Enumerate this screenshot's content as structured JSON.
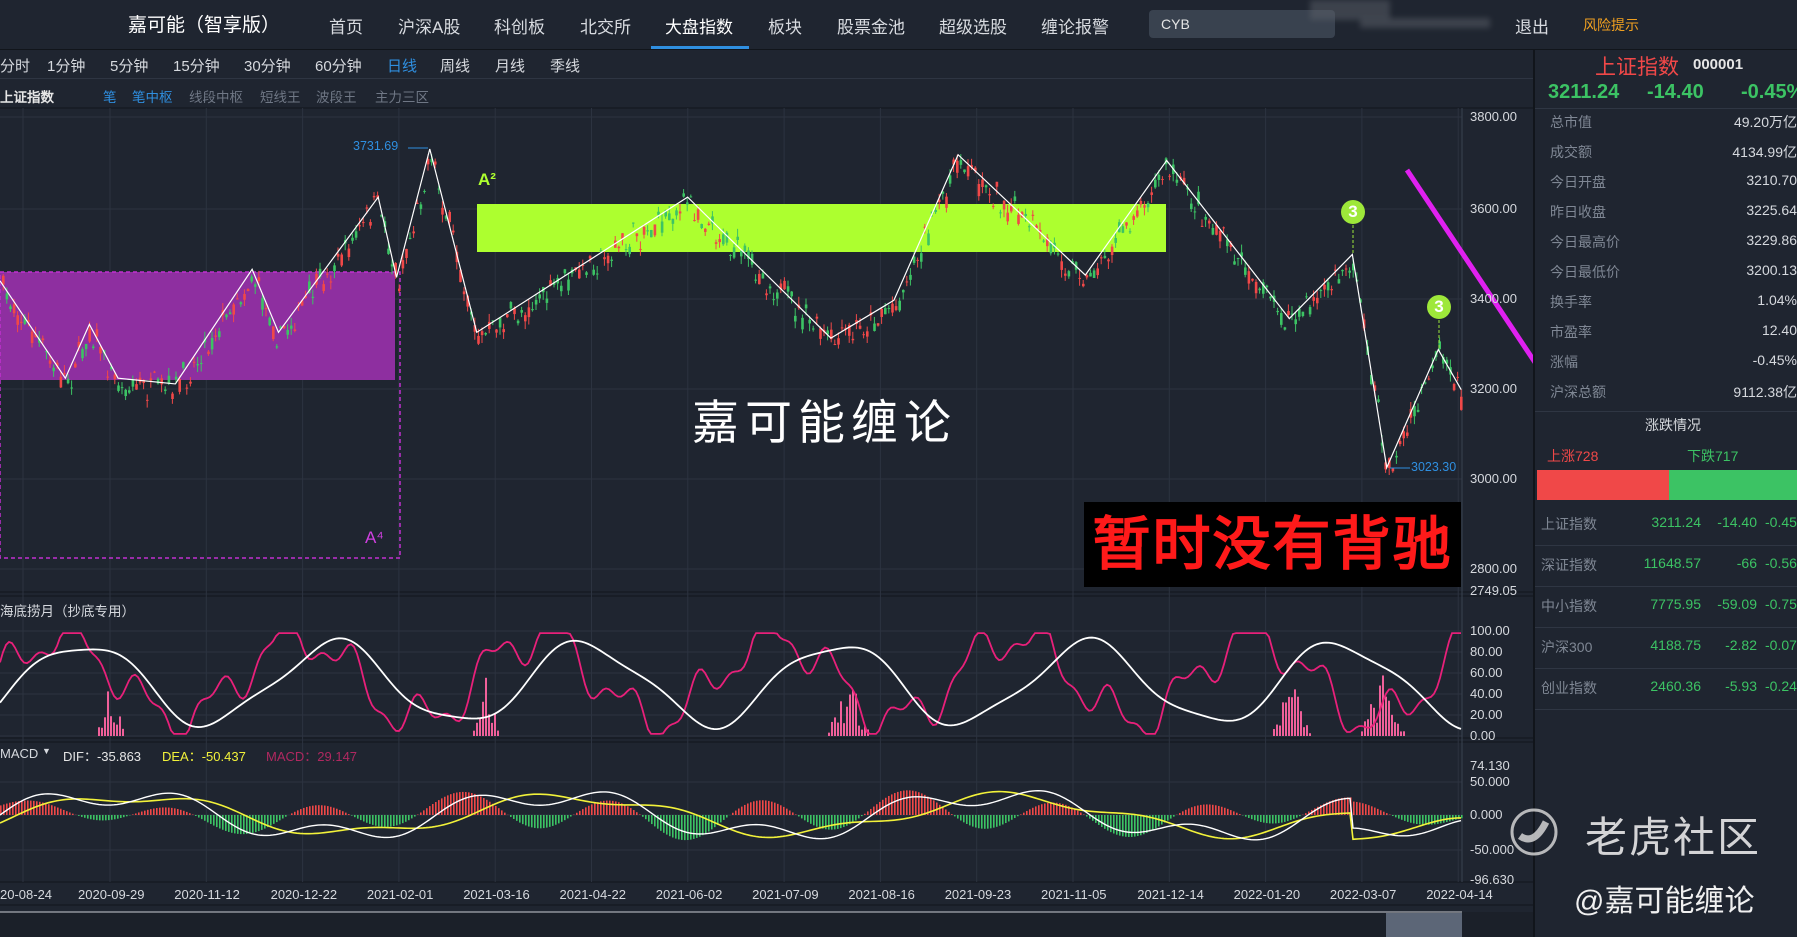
{
  "app": {
    "title": "嘉可能（智享版）"
  },
  "nav": {
    "items": [
      "首页",
      "沪深A股",
      "科创板",
      "北交所",
      "大盘指数",
      "板块",
      "股票金池",
      "超级选股",
      "缠论报警"
    ],
    "active": "大盘指数",
    "search_value": "CYB",
    "logout": "退出",
    "risk": "风险提示"
  },
  "periods": {
    "items": [
      "分时",
      "1分钟",
      "5分钟",
      "15分钟",
      "30分钟",
      "60分钟",
      "日线",
      "周线",
      "月线",
      "季线"
    ],
    "active": "日线"
  },
  "indicators": {
    "symbol": "上证指数",
    "items": [
      "笔",
      "笔中枢",
      "线段中枢",
      "短线王",
      "波段王",
      "主力三区"
    ],
    "active": [
      "笔",
      "笔中枢"
    ]
  },
  "main_chart": {
    "price_axis": [
      "3800.00",
      "3600.00",
      "3400.00",
      "3200.00",
      "3000.00",
      "2800.00",
      "2749.05"
    ],
    "high_label": "3731.69",
    "low_label": "3023.30",
    "zone_labels": {
      "a2": "A²",
      "a4": "A⁴"
    },
    "signal_badge": "3",
    "watermark": "嘉可能缠论",
    "note": "暂时没有背驰",
    "colors": {
      "up": "#f04848",
      "down": "#3cc364",
      "zone_a4": "#8e2fa0",
      "zone_a2": "#adff2f",
      "arrow": "#e020f0"
    }
  },
  "osc_panel": {
    "title": "海底捞月（抄底专用）",
    "axis": [
      "100.00",
      "80.00",
      "60.00",
      "40.00",
      "20.00",
      "0.00"
    ]
  },
  "macd_panel": {
    "selector": "MACD",
    "dif": "DIF：-35.863",
    "dea": "DEA：-50.437",
    "macd": "MACD：29.147",
    "axis": [
      "74.130",
      "50.000",
      "0.000",
      "-50.000",
      "-96.630"
    ]
  },
  "date_axis": [
    "20-08-24",
    "2020-09-29",
    "2020-11-12",
    "2020-12-22",
    "2021-02-01",
    "2021-03-16",
    "2021-04-22",
    "2021-06-02",
    "2021-07-09",
    "2021-08-16",
    "2021-09-23",
    "2021-11-05",
    "2021-12-14",
    "2022-01-20",
    "2022-03-07",
    "2022-04-14"
  ],
  "quote": {
    "name": "上证指数",
    "code": "000001",
    "price": "3211.24",
    "change": "-14.40",
    "pct": "-0.45%"
  },
  "stats": [
    {
      "label": "总市值",
      "value": "49.20万亿"
    },
    {
      "label": "成交额",
      "value": "4134.99亿"
    },
    {
      "label": "今日开盘",
      "value": "3210.70"
    },
    {
      "label": "昨日收盘",
      "value": "3225.64"
    },
    {
      "label": "今日最高价",
      "value": "3229.86"
    },
    {
      "label": "今日最低价",
      "value": "3200.13"
    },
    {
      "label": "换手率",
      "value": "1.04%"
    },
    {
      "label": "市盈率",
      "value": "12.40"
    },
    {
      "label": "涨幅",
      "value": "-0.45%"
    },
    {
      "label": "沪深总额",
      "value": "9112.38亿"
    }
  ],
  "breadth": {
    "title": "涨跌情况",
    "up": "上涨728",
    "down": "下跌717",
    "up_count": 728,
    "down_count": 717
  },
  "indices": [
    {
      "name": "上证指数",
      "price": "3211.24",
      "change": "-14.40",
      "pct": "-0.45%"
    },
    {
      "name": "深证指数",
      "price": "11648.57",
      "change": "-66",
      "pct": "-0.56%"
    },
    {
      "name": "中小指数",
      "price": "7775.95",
      "change": "-59.09",
      "pct": "-0.75%"
    },
    {
      "name": "沪深300",
      "price": "4188.75",
      "change": "-2.82",
      "pct": "-0.07%"
    },
    {
      "name": "创业指数",
      "price": "2460.36",
      "change": "-5.93",
      "pct": "-0.24%"
    }
  ],
  "watermark": {
    "brand": "老虎社区",
    "author": "@嘉可能缠论"
  }
}
